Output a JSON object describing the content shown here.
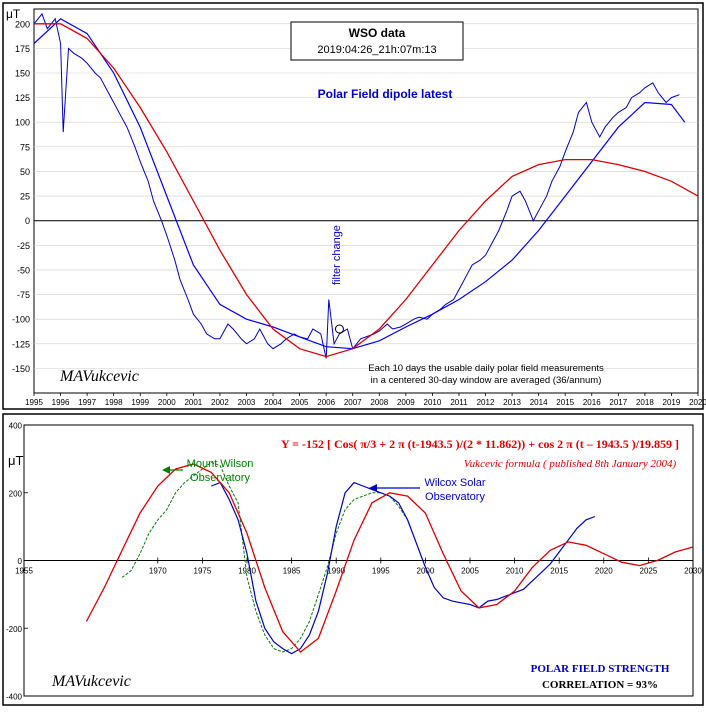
{
  "chart_data": [
    {
      "type": "line",
      "title": "WSO data",
      "subtitle": "2019:04:26_21h:07m:13",
      "series_label": "Polar Field dipole latest",
      "ylabel": "μT",
      "xlim": [
        1995,
        2020
      ],
      "ylim": [
        -175,
        215
      ],
      "x_ticks": [
        "1995",
        "1996",
        "1997",
        "1998",
        "1999",
        "2000",
        "2001",
        "2002",
        "2003",
        "2004",
        "2005",
        "2006",
        "2007",
        "2008",
        "2009",
        "2010",
        "2011",
        "2012",
        "2013",
        "2014",
        "2015",
        "2016",
        "2017",
        "2018",
        "2019",
        "2020"
      ],
      "y_ticks": [
        "200",
        "175",
        "150",
        "125",
        "100",
        "75",
        "50",
        "25",
        "0",
        "-25",
        "-50",
        "-75",
        "-100",
        "-125",
        "-150"
      ],
      "annotation_filter": "filter change",
      "annotation_note_1": "Each 10 days the usable daily polar field measurements",
      "annotation_note_2": "in a centered 30-day window are averaged (36/annum)",
      "author": "MAVukcevic",
      "colors": {
        "measured": "#0000cc",
        "fit": "#0000ff",
        "model": "#e00000",
        "title_text": "#0000cc"
      },
      "series": [
        {
          "role": "measured",
          "x": [
            1995.0,
            1995.3,
            1995.5,
            1995.8,
            1996.0,
            1996.1,
            1996.3,
            1996.5,
            1996.8,
            1997.0,
            1997.3,
            1997.5,
            1997.8,
            1998.0,
            1998.3,
            1998.5,
            1998.8,
            1999.0,
            1999.3,
            1999.5,
            1999.8,
            2000.0,
            2000.3,
            2000.5,
            2000.8,
            2001.0,
            2001.3,
            2001.5,
            2001.8,
            2002.0,
            2002.3,
            2002.5,
            2002.8,
            2003.0,
            2003.3,
            2003.5,
            2003.8,
            2004.0,
            2004.3,
            2004.5,
            2004.8,
            2005.0,
            2005.3,
            2005.5,
            2005.8,
            2006.0,
            2006.1,
            2006.3,
            2006.5,
            2006.8,
            2007.0,
            2007.3,
            2007.5,
            2007.8,
            2008.0,
            2008.3,
            2008.5,
            2008.8,
            2009.0,
            2009.3,
            2009.5,
            2009.8,
            2010.0,
            2010.3,
            2010.5,
            2010.8,
            2011.0,
            2011.3,
            2011.5,
            2011.8,
            2012.0,
            2012.3,
            2012.5,
            2012.8,
            2013.0,
            2013.3,
            2013.5,
            2013.8,
            2014.0,
            2014.3,
            2014.5,
            2014.8,
            2015.0,
            2015.3,
            2015.5,
            2015.8,
            2016.0,
            2016.3,
            2016.5,
            2016.8,
            2017.0,
            2017.3,
            2017.5,
            2017.8,
            2018.0,
            2018.3,
            2018.5,
            2018.8,
            2019.0,
            2019.3
          ],
          "y": [
            200,
            210,
            195,
            205,
            180,
            90,
            175,
            170,
            165,
            160,
            150,
            145,
            130,
            120,
            105,
            95,
            75,
            60,
            40,
            20,
            0,
            -15,
            -40,
            -60,
            -80,
            -95,
            -105,
            -115,
            -120,
            -120,
            -105,
            -110,
            -120,
            -125,
            -120,
            -110,
            -125,
            -130,
            -125,
            -120,
            -115,
            -118,
            -120,
            -110,
            -115,
            -140,
            -80,
            -125,
            -115,
            -110,
            -130,
            -120,
            -118,
            -115,
            -112,
            -105,
            -110,
            -108,
            -105,
            -100,
            -98,
            -100,
            -95,
            -90,
            -85,
            -80,
            -70,
            -55,
            -45,
            -40,
            -35,
            -20,
            -10,
            10,
            25,
            30,
            20,
            0,
            10,
            25,
            40,
            55,
            70,
            90,
            110,
            120,
            100,
            85,
            95,
            105,
            110,
            115,
            125,
            130,
            135,
            140,
            130,
            120,
            125,
            128
          ]
        },
        {
          "role": "fit",
          "x": [
            1995.0,
            1996.0,
            1997.0,
            1998.0,
            1999.0,
            2000.0,
            2001.0,
            2002.0,
            2003.0,
            2004.0,
            2005.0,
            2006.0,
            2007.0,
            2008.0,
            2009.0,
            2010.0,
            2011.0,
            2012.0,
            2013.0,
            2014.0,
            2015.0,
            2016.0,
            2017.0,
            2018.0,
            2019.0,
            2019.5
          ],
          "y": [
            180,
            205,
            190,
            150,
            95,
            25,
            -45,
            -85,
            -100,
            -108,
            -118,
            -128,
            -130,
            -122,
            -108,
            -95,
            -80,
            -62,
            -40,
            -10,
            25,
            60,
            95,
            120,
            118,
            100
          ]
        },
        {
          "role": "model",
          "x": [
            1995.0,
            1996.0,
            1997.0,
            1998.0,
            1999.0,
            2000.0,
            2001.0,
            2002.0,
            2003.0,
            2004.0,
            2005.0,
            2006.0,
            2007.0,
            2008.0,
            2009.0,
            2010.0,
            2011.0,
            2012.0,
            2013.0,
            2014.0,
            2015.0,
            2016.0,
            2017.0,
            2018.0,
            2019.0,
            2020.0
          ],
          "y": [
            200,
            200,
            185,
            155,
            115,
            70,
            20,
            -30,
            -75,
            -110,
            -130,
            -138,
            -130,
            -110,
            -80,
            -45,
            -10,
            20,
            45,
            57,
            62,
            62,
            57,
            50,
            40,
            25
          ]
        }
      ]
    },
    {
      "type": "line",
      "formula": "Y = -152 [ Cos( π/3 + 2 π (t-1943.5 )/(2 * 11.862)) + cos 2 π (t – 1943.5 )/19.859 ]",
      "formula_note": "Vukcevic formula ( published 8th January 2004)",
      "ylabel": "μT",
      "xlim": [
        1955,
        2030
      ],
      "ylim": [
        -400,
        400
      ],
      "x_ticks": [
        "1955",
        "1970",
        "1975",
        "1980",
        "1985",
        "1990",
        "1995",
        "2000",
        "2005",
        "2010",
        "2015",
        "2020",
        "2025",
        "2030"
      ],
      "y_ticks": [
        "400",
        "200",
        "0",
        "-200",
        "-400"
      ],
      "label_mount_wilson": "Mount Wilson",
      "label_mount_wilson_2": "Observatory",
      "label_wilcox": "Wilcox Solar",
      "label_wilcox_2": "Observatory",
      "caption_1": "POLAR FIELD STRENGTH",
      "caption_2": "CORRELATION = 93%",
      "author": "MAVukcevic",
      "colors": {
        "mount_wilson": "#008000",
        "wilcox": "#0000cc",
        "model": "#e00000",
        "formula": "#e00000",
        "caption": "#0000cc"
      },
      "series": [
        {
          "role": "mount_wilson",
          "x": [
            1966.0,
            1967.0,
            1968.0,
            1969.0,
            1970.0,
            1971.0,
            1972.0,
            1973.0,
            1974.0,
            1975.0,
            1976.0,
            1977.0,
            1978.0,
            1979.0,
            1980.0,
            1981.0,
            1982.0,
            1983.0,
            1984.0,
            1985.0,
            1986.0,
            1987.0,
            1988.0,
            1989.0,
            1990.0,
            1991.0,
            1992.0,
            1993.0,
            1994.0,
            1995.0,
            1996.0,
            1997.0,
            1998.0,
            1999.0,
            2000.0
          ],
          "y": [
            -50,
            -30,
            20,
            80,
            120,
            150,
            200,
            230,
            250,
            270,
            290,
            280,
            220,
            170,
            -50,
            -150,
            -220,
            -260,
            -270,
            -260,
            -230,
            -180,
            -100,
            -20,
            80,
            150,
            180,
            190,
            200,
            200,
            190,
            160,
            120,
            50,
            -20
          ]
        },
        {
          "role": "wilcox",
          "x": [
            1976.0,
            1977.0,
            1978.0,
            1979.0,
            1980.0,
            1981.0,
            1982.0,
            1983.0,
            1984.0,
            1985.0,
            1986.0,
            1987.0,
            1988.0,
            1989.0,
            1990.0,
            1991.0,
            1992.0,
            1993.0,
            1994.0,
            1995.0,
            1996.0,
            1997.0,
            1998.0,
            1999.0,
            2000.0,
            2001.0,
            2002.0,
            2003.0,
            2004.0,
            2005.0,
            2006.0,
            2007.0,
            2008.0,
            2009.0,
            2010.0,
            2011.0,
            2012.0,
            2013.0,
            2014.0,
            2015.0,
            2016.0,
            2017.0,
            2018.0,
            2019.0
          ],
          "y": [
            220,
            230,
            180,
            120,
            20,
            -120,
            -200,
            -240,
            -260,
            -275,
            -260,
            -220,
            -150,
            -40,
            100,
            200,
            230,
            220,
            210,
            200,
            190,
            170,
            120,
            50,
            -20,
            -80,
            -110,
            -120,
            -125,
            -130,
            -140,
            -120,
            -115,
            -105,
            -95,
            -85,
            -60,
            -35,
            -10,
            25,
            60,
            95,
            120,
            130
          ]
        },
        {
          "role": "model",
          "x": [
            1962.0,
            1964.0,
            1966.0,
            1968.0,
            1970.0,
            1972.0,
            1974.0,
            1976.0,
            1978.0,
            1980.0,
            1982.0,
            1984.0,
            1986.0,
            1988.0,
            1990.0,
            1992.0,
            1994.0,
            1996.0,
            1998.0,
            2000.0,
            2002.0,
            2004.0,
            2006.0,
            2008.0,
            2010.0,
            2012.0,
            2014.0,
            2016.0,
            2018.0,
            2020.0,
            2022.0,
            2024.0,
            2026.0,
            2028.0,
            2030.0
          ],
          "y": [
            -180,
            -80,
            30,
            140,
            220,
            270,
            285,
            260,
            200,
            80,
            -80,
            -210,
            -270,
            -230,
            -90,
            60,
            170,
            200,
            190,
            140,
            20,
            -90,
            -140,
            -130,
            -90,
            -20,
            30,
            55,
            45,
            20,
            -5,
            -15,
            0,
            25,
            40
          ]
        }
      ]
    }
  ]
}
